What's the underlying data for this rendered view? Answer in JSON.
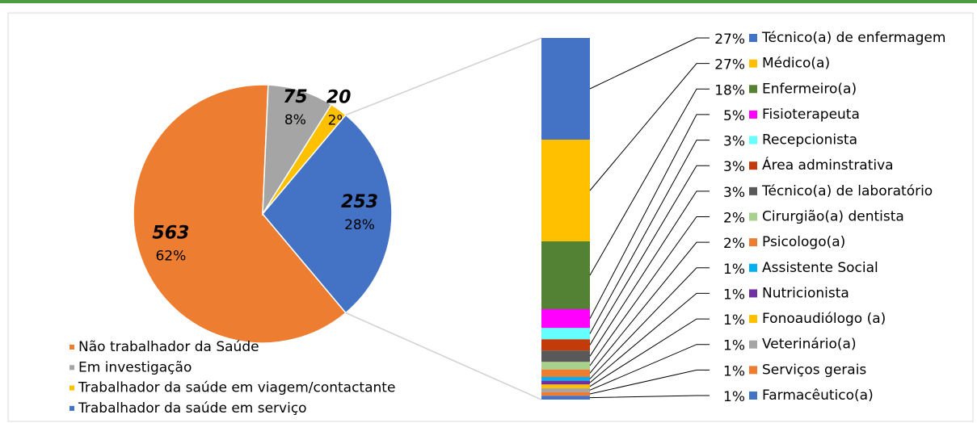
{
  "chart_data": [
    {
      "type": "pie",
      "categories": [
        "Não trabalhador da Saúde",
        "Em investigação",
        "Trabalhador da saúde em viagem/contactante",
        "Trabalhador da saúde em serviço"
      ],
      "values": [
        563,
        75,
        20,
        253
      ],
      "percent_labels": [
        "62%",
        "8%",
        "2%",
        "28%"
      ],
      "colors": [
        "#ed7d31",
        "#a5a5a5",
        "#ffc000",
        "#4472c4"
      ]
    },
    {
      "type": "bar",
      "stacked": true,
      "categories": [
        "Técnico(a) de enfermagem",
        "Médico(a)",
        "Enfermeiro(a)",
        "Fisioterapeuta",
        "Recepcionista",
        "Área adminstrativa",
        "Técnico(a) de laboratório",
        "Cirurgião(a) dentista",
        "Psicologo(a)",
        "Assistente Social",
        "Nutricionista",
        "Fonoaudiólogo (a)",
        "Veterinário(a)",
        "Serviços gerais",
        "Farmacêutico(a)"
      ],
      "values": [
        27,
        27,
        18,
        5,
        3,
        3,
        3,
        2,
        2,
        1,
        1,
        1,
        1,
        1,
        1
      ],
      "value_labels": [
        "27%",
        "27%",
        "18%",
        "5%",
        "3%",
        "3%",
        "3%",
        "2%",
        "2%",
        "1%",
        "1%",
        "1%",
        "1%",
        "1%",
        "1%"
      ],
      "colors": [
        "#4472c4",
        "#ffc000",
        "#548235",
        "#ff00ff",
        "#66ffff",
        "#c33b0b",
        "#595959",
        "#a9d18e",
        "#ed7d31",
        "#00b0f0",
        "#7030a0",
        "#ffc000",
        "#a5a5a5",
        "#ed7d31",
        "#4472c4"
      ]
    }
  ]
}
